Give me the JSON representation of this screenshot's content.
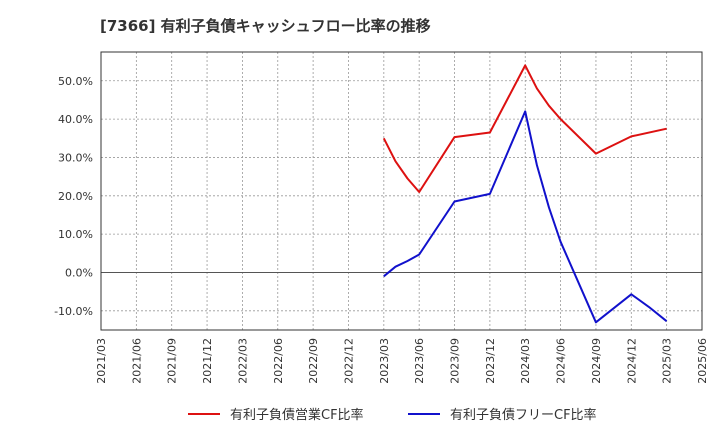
{
  "chart_data": {
    "type": "line",
    "title": "[7366]  有利子負債キャッシュフロー比率の推移",
    "xlabel": "",
    "ylabel": "",
    "ylim": [
      -15,
      57.5
    ],
    "yticks": [
      -10,
      0,
      10,
      20,
      30,
      40,
      50
    ],
    "ytick_labels": [
      "-10.0%",
      "0.0%",
      "10.0%",
      "20.0%",
      "30.0%",
      "40.0%",
      "50.0%"
    ],
    "x_categories": [
      "2021/03",
      "2021/06",
      "2021/09",
      "2021/12",
      "2022/03",
      "2022/06",
      "2022/09",
      "2022/12",
      "2023/03",
      "2023/06",
      "2023/09",
      "2023/12",
      "2024/03",
      "2024/06",
      "2024/09",
      "2024/12",
      "2025/03",
      "2025/06"
    ],
    "series": [
      {
        "name": "有利子負債営業CF比率",
        "color": "#dd1111",
        "points": [
          {
            "x": 8,
            "y": 35.0
          },
          {
            "x": 8.33,
            "y": 29.0
          },
          {
            "x": 8.67,
            "y": 24.5
          },
          {
            "x": 9,
            "y": 21.0
          },
          {
            "x": 10,
            "y": 35.3
          },
          {
            "x": 11,
            "y": 36.5
          },
          {
            "x": 12,
            "y": 54.0
          },
          {
            "x": 12.33,
            "y": 48.0
          },
          {
            "x": 12.67,
            "y": 43.5
          },
          {
            "x": 13,
            "y": 40.0
          },
          {
            "x": 14,
            "y": 31.0
          },
          {
            "x": 15,
            "y": 35.5
          },
          {
            "x": 16,
            "y": 37.5
          }
        ]
      },
      {
        "name": "有利子負債フリーCF比率",
        "color": "#1111cc",
        "points": [
          {
            "x": 8,
            "y": -1.0
          },
          {
            "x": 8.33,
            "y": 1.5
          },
          {
            "x": 8.67,
            "y": 3.0
          },
          {
            "x": 9,
            "y": 4.7
          },
          {
            "x": 10,
            "y": 18.5
          },
          {
            "x": 11,
            "y": 20.5
          },
          {
            "x": 12,
            "y": 42.0
          },
          {
            "x": 12.33,
            "y": 28.0
          },
          {
            "x": 12.67,
            "y": 17.0
          },
          {
            "x": 13,
            "y": 8.0
          },
          {
            "x": 14,
            "y": -13.0
          },
          {
            "x": 15,
            "y": -5.7
          },
          {
            "x": 15.5,
            "y": -9.0
          },
          {
            "x": 16,
            "y": -12.7
          }
        ]
      }
    ],
    "legend": {
      "placement": "bottom",
      "items": [
        {
          "label": "有利子負債営業CF比率",
          "color": "#dd1111"
        },
        {
          "label": "有利子負債フリーCF比率",
          "color": "#1111cc"
        }
      ]
    },
    "grid": true
  }
}
